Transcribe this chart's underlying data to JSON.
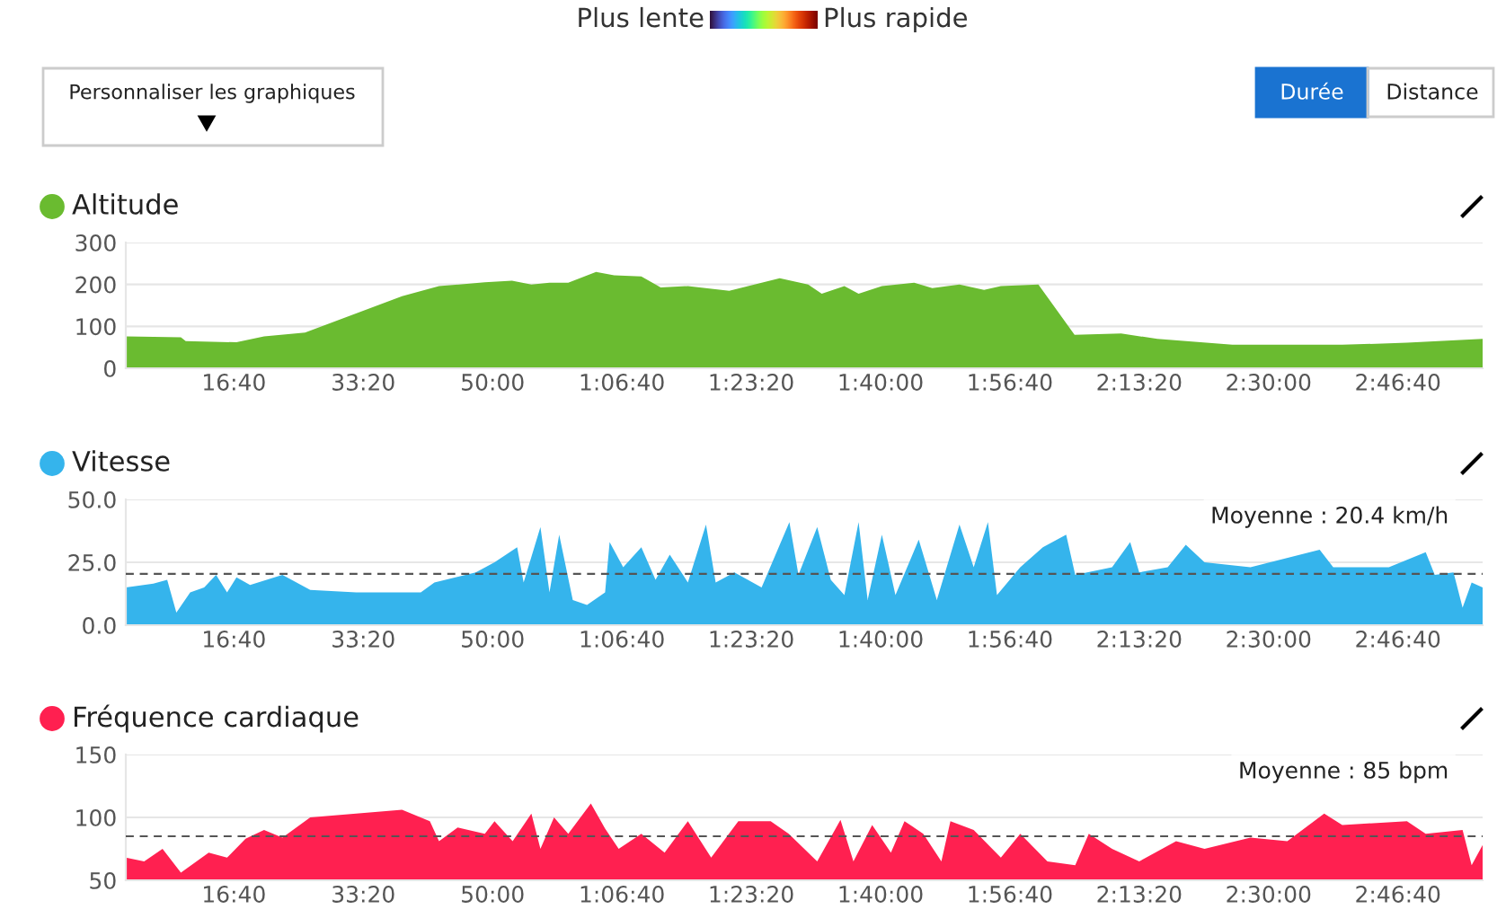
{
  "chart_data": [
    {
      "type": "other",
      "annotations": [
        "Plus lente",
        "Plus rapide",
        "Personnaliser les graphiques",
        "Durée",
        "Distance"
      ]
    },
    {
      "type": "area",
      "title": "Altitude",
      "grid": "y",
      "xlim": [
        164,
        10655
      ],
      "ylim": [
        0,
        300
      ],
      "yticks": [
        0,
        100,
        200,
        300
      ],
      "xticks": [
        {
          "value": 1000,
          "label": "16:40"
        },
        {
          "value": 2000,
          "label": "33:20"
        },
        {
          "value": 3000,
          "label": "50:00"
        },
        {
          "value": 4000,
          "label": "1:06:40"
        },
        {
          "value": 5000,
          "label": "1:23:20"
        },
        {
          "value": 6000,
          "label": "1:40:00"
        },
        {
          "value": 7000,
          "label": "1:56:40"
        },
        {
          "value": 8000,
          "label": "2:13:20"
        },
        {
          "value": 9000,
          "label": "2:30:00"
        },
        {
          "value": 10000,
          "label": "2:46:40"
        }
      ],
      "x": [
        164,
        590,
        627,
        1020,
        1233,
        1550,
        2300,
        2586,
        2940,
        3150,
        3300,
        3440,
        3585,
        3800,
        3940,
        4150,
        4300,
        4510,
        4830,
        5220,
        5440,
        5545,
        5720,
        5830,
        6010,
        6260,
        6400,
        6610,
        6800,
        6930,
        7220,
        7500,
        7860,
        8140,
        8720,
        9570,
        10070,
        10655
      ],
      "series": [
        {
          "color": "#6abb30",
          "values": [
            76,
            74,
            65,
            62,
            76,
            85,
            172,
            196,
            205,
            209,
            200,
            204,
            204,
            230,
            222,
            219,
            193,
            196,
            185,
            215,
            200,
            178,
            196,
            178,
            196,
            204,
            191,
            200,
            187,
            196,
            200,
            80,
            83,
            70,
            56,
            56,
            61,
            70
          ]
        }
      ]
    },
    {
      "type": "area",
      "title": "Vitesse",
      "grid": "y",
      "xlim": [
        164,
        10655
      ],
      "ylim": [
        0,
        50
      ],
      "yticks": [
        {
          "value": 0,
          "label": "0.0"
        },
        {
          "value": 25,
          "label": "25.0"
        },
        {
          "value": 50,
          "label": "50.0"
        }
      ],
      "xticks": [
        {
          "value": 1000,
          "label": "16:40"
        },
        {
          "value": 2000,
          "label": "33:20"
        },
        {
          "value": 3000,
          "label": "50:00"
        },
        {
          "value": 4000,
          "label": "1:06:40"
        },
        {
          "value": 5000,
          "label": "1:23:20"
        },
        {
          "value": 6000,
          "label": "1:40:00"
        },
        {
          "value": 7000,
          "label": "1:56:40"
        },
        {
          "value": 8000,
          "label": "2:13:20"
        },
        {
          "value": 9000,
          "label": "2:30:00"
        },
        {
          "value": 10000,
          "label": "2:46:40"
        }
      ],
      "x": [
        164,
        377,
        484,
        555,
        662,
        770,
        862,
        947,
        1020,
        1125,
        1375,
        1590,
        1945,
        2445,
        2550,
        2870,
        3015,
        3190,
        3240,
        3370,
        3440,
        3515,
        3620,
        3730,
        3870,
        3905,
        4010,
        4150,
        4260,
        4370,
        4510,
        4650,
        4725,
        4870,
        5080,
        5295,
        5365,
        5510,
        5615,
        5720,
        5830,
        5900,
        6010,
        6115,
        6295,
        6435,
        6610,
        6720,
        6830,
        6900,
        7080,
        7255,
        7435,
        7505,
        7790,
        7930,
        8000,
        8220,
        8360,
        8505,
        8860,
        9395,
        9500,
        9930,
        10215,
        10285,
        10430,
        10500,
        10570,
        10655
      ],
      "series": [
        {
          "color": "#35b4ec",
          "values": [
            15,
            16.5,
            18,
            5,
            13,
            15,
            20,
            13,
            19,
            16,
            20,
            14,
            13,
            13,
            17,
            21,
            25,
            31,
            17,
            39,
            13,
            36,
            10,
            8,
            13,
            33,
            23,
            31,
            18,
            28,
            17,
            40,
            17,
            21,
            15,
            41,
            20,
            39,
            18,
            12,
            41,
            10,
            36,
            12,
            34,
            10,
            40,
            23,
            41,
            12,
            23,
            31,
            36,
            20,
            23,
            33,
            21,
            23,
            32,
            25,
            23,
            30,
            23,
            23,
            29,
            20,
            21,
            7,
            17,
            15
          ]
        }
      ],
      "ref_lines": [
        {
          "axis": "y",
          "value": 20.4,
          "label": "Moyenne : 20.4 km/h",
          "color": "#555555",
          "line_style": "dashed"
        }
      ]
    },
    {
      "type": "area",
      "title": "Fréquence cardiaque",
      "grid": "y",
      "xlim": [
        164,
        10655
      ],
      "ylim": [
        50,
        150
      ],
      "yticks": [
        50,
        100,
        150
      ],
      "xticks": [
        {
          "value": 1000,
          "label": "16:40"
        },
        {
          "value": 2000,
          "label": "33:20"
        },
        {
          "value": 3000,
          "label": "50:00"
        },
        {
          "value": 4000,
          "label": "1:06:40"
        },
        {
          "value": 5000,
          "label": "1:23:20"
        },
        {
          "value": 6000,
          "label": "1:40:00"
        },
        {
          "value": 7000,
          "label": "1:56:40"
        },
        {
          "value": 8000,
          "label": "2:13:20"
        },
        {
          "value": 9000,
          "label": "2:30:00"
        },
        {
          "value": 10000,
          "label": "2:46:40"
        }
      ],
      "x": [
        164,
        306,
        448,
        590,
        805,
        947,
        1090,
        1233,
        1375,
        1590,
        1945,
        2300,
        2515,
        2586,
        2730,
        2940,
        3015,
        3155,
        3300,
        3370,
        3475,
        3585,
        3760,
        3870,
        3975,
        4150,
        4330,
        4510,
        4690,
        4900,
        5150,
        5290,
        5510,
        5690,
        5790,
        5935,
        6080,
        6185,
        6330,
        6470,
        6540,
        6720,
        6930,
        7080,
        7290,
        7505,
        7610,
        7790,
        8000,
        8285,
        8505,
        8860,
        9145,
        9430,
        9570,
        10070,
        10215,
        10500,
        10570,
        10655
      ],
      "series": [
        {
          "color": "#ff2050",
          "values": [
            68,
            65,
            75,
            56,
            72,
            68,
            83,
            90,
            84,
            100,
            103,
            106,
            97,
            81,
            92,
            87,
            97,
            81,
            103,
            75,
            100,
            87,
            111,
            91,
            75,
            87,
            72,
            97,
            68,
            97,
            97,
            87,
            65,
            98,
            65,
            94,
            72,
            97,
            87,
            65,
            97,
            90,
            68,
            87,
            65,
            62,
            87,
            75,
            65,
            81,
            75,
            84,
            81,
            103,
            94,
            97,
            87,
            90,
            62,
            78
          ]
        }
      ],
      "ref_lines": [
        {
          "axis": "y",
          "value": 85,
          "label": "Moyenne : 85 bpm",
          "color": "#555555",
          "line_style": "dashed"
        }
      ]
    }
  ]
}
